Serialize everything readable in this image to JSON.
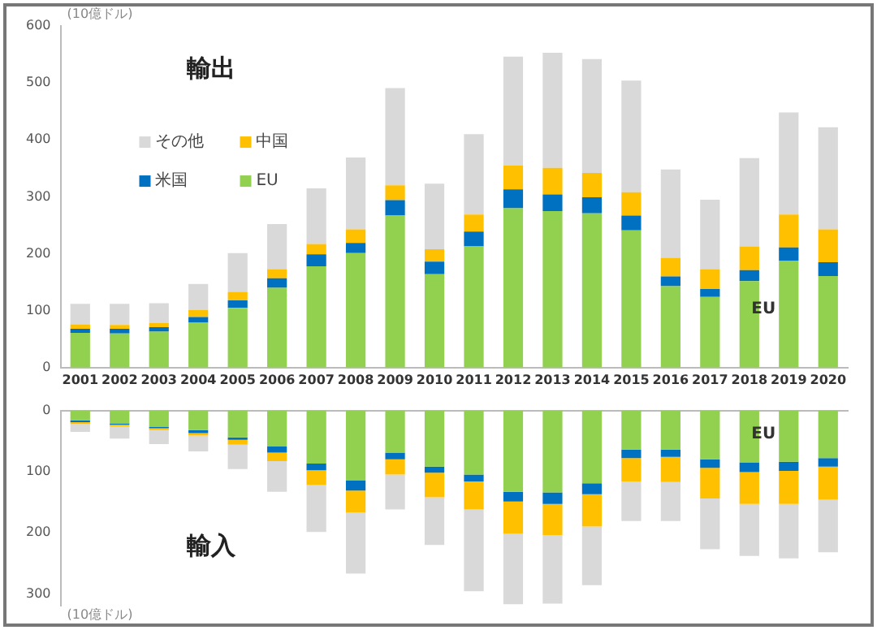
{
  "chart_data": [
    {
      "type": "bar",
      "title": "輸出",
      "ylabel": "(10億ドル)",
      "stacked": true,
      "categories": [
        "2001",
        "2002",
        "2003",
        "2004",
        "2005",
        "2006",
        "2007",
        "2008",
        "2009",
        "2010",
        "2011",
        "2012",
        "2013",
        "2014",
        "2015",
        "2016",
        "2017",
        "2018",
        "2019",
        "2020"
      ],
      "series": [
        {
          "name": "EU",
          "color": "#92d050",
          "values": [
            61,
            60,
            63,
            79,
            105,
            140,
            178,
            201,
            267,
            164,
            213,
            280,
            275,
            271,
            241,
            143,
            124,
            152,
            188,
            161
          ]
        },
        {
          "name": "米国",
          "color": "#0070c0",
          "values": [
            7,
            8,
            8,
            10,
            13,
            17,
            21,
            18,
            27,
            22,
            26,
            33,
            29,
            28,
            26,
            17,
            14,
            19,
            23,
            24
          ]
        },
        {
          "name": "中国",
          "color": "#ffc000",
          "values": [
            8,
            7,
            7,
            12,
            15,
            16,
            18,
            24,
            26,
            22,
            30,
            42,
            47,
            43,
            41,
            33,
            35,
            42,
            58,
            58
          ]
        },
        {
          "name": "その他",
          "color": "#d9d9d9",
          "values": [
            36,
            37,
            35,
            46,
            68,
            79,
            98,
            126,
            171,
            115,
            141,
            191,
            202,
            200,
            196,
            155,
            122,
            155,
            179,
            179
          ]
        }
      ],
      "ylim": [
        0,
        600
      ],
      "yticks": [
        0,
        100,
        200,
        300,
        400,
        500,
        600
      ],
      "grid": false,
      "legend": "top left",
      "annotations": [
        "EU"
      ]
    },
    {
      "type": "bar",
      "title": "輸入",
      "stacked": true,
      "categories": [
        "2001",
        "2002",
        "2003",
        "2004",
        "2005",
        "2006",
        "2007",
        "2008",
        "2009",
        "2010",
        "2011",
        "2012",
        "2013",
        "2014",
        "2015",
        "2016",
        "2017",
        "2018",
        "2019",
        "2020"
      ],
      "series": [
        {
          "color": "#92d050",
          "values": [
            16,
            21,
            27,
            32,
            44,
            59,
            87,
            114,
            69,
            92,
            105,
            133,
            134,
            119,
            64,
            64,
            80,
            85,
            84,
            78
          ]
        },
        {
          "color": "#0070c0",
          "values": [
            3,
            2,
            2,
            5,
            4,
            10,
            11,
            17,
            11,
            10,
            11,
            16,
            19,
            18,
            14,
            12,
            14,
            16,
            15,
            14
          ]
        },
        {
          "color": "#ffc000",
          "values": [
            3,
            3,
            3,
            4,
            8,
            14,
            24,
            36,
            25,
            40,
            46,
            53,
            51,
            53,
            38,
            41,
            50,
            52,
            54,
            54
          ]
        },
        {
          "color": "#d9d9d9",
          "values": [
            13,
            20,
            23,
            26,
            40,
            50,
            77,
            100,
            57,
            78,
            134,
            115,
            112,
            96,
            65,
            64,
            83,
            85,
            89,
            86
          ]
        }
      ],
      "ylim": [
        320,
        0
      ],
      "yticks": [
        0,
        100,
        200,
        300
      ],
      "grid": false,
      "legend": false,
      "tick_labels": "y",
      "annotations": [
        "EU",
        "(10億ドル)"
      ]
    }
  ]
}
